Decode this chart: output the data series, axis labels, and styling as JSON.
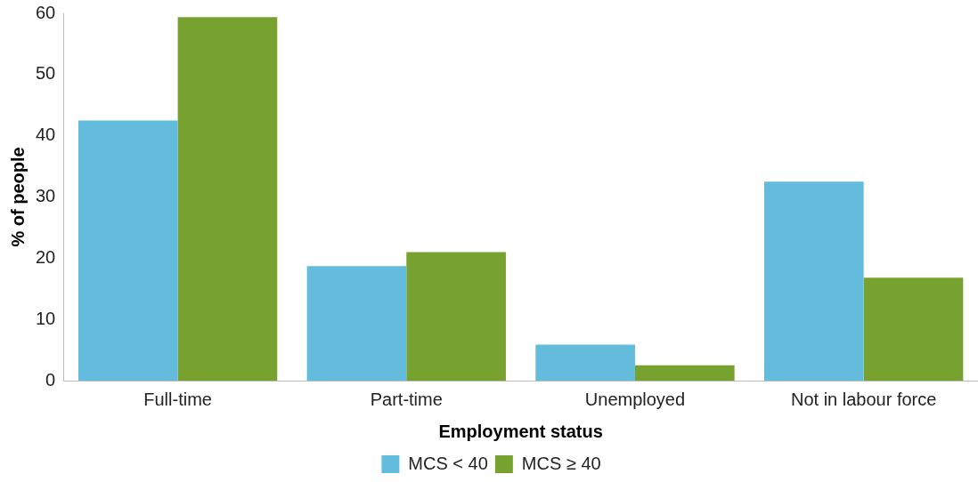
{
  "chart_data": {
    "type": "bar",
    "xlabel": "Employment status",
    "ylabel": "% of people",
    "categories": [
      "Full-time",
      "Part-time",
      "Unemployed",
      "Not in labour force"
    ],
    "series": [
      {
        "name": "MCS < 40",
        "color": "#64bcdc",
        "values": [
          42.5,
          18.7,
          5.9,
          32.5
        ]
      },
      {
        "name": "MCS ≥ 40",
        "color": "#78a22f",
        "values": [
          59.4,
          21.0,
          2.5,
          16.8
        ]
      }
    ],
    "ylim": [
      0,
      60
    ],
    "yticks": [
      0,
      10,
      20,
      30,
      40,
      50,
      60
    ],
    "grid": false,
    "legend": "bottom"
  }
}
